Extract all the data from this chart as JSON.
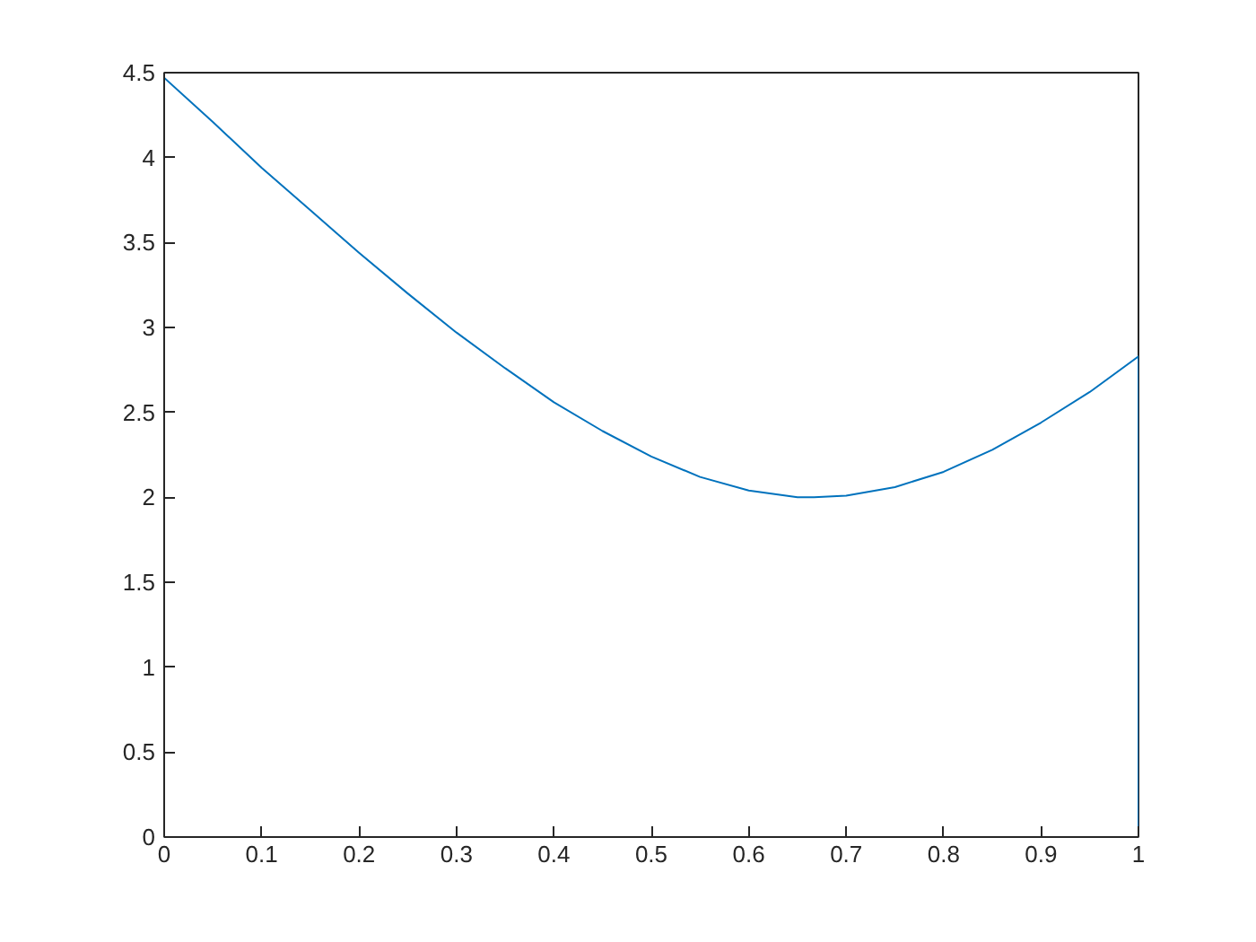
{
  "chart_data": {
    "type": "line",
    "x": [
      0,
      0.05,
      0.1,
      0.15,
      0.2,
      0.25,
      0.3,
      0.35,
      0.4,
      0.45,
      0.5,
      0.55,
      0.6,
      0.65,
      0.667,
      0.7,
      0.75,
      0.8,
      0.85,
      0.9,
      0.95,
      1,
      1
    ],
    "series": [
      {
        "color": "#0072bd",
        "values": [
          4.47,
          4.21,
          3.94,
          3.69,
          3.44,
          3.2,
          2.97,
          2.76,
          2.56,
          2.39,
          2.24,
          2.12,
          2.04,
          2.0,
          2.0,
          2.01,
          2.06,
          2.15,
          2.28,
          2.44,
          2.62,
          2.83,
          0
        ]
      }
    ],
    "xlim": [
      0,
      1
    ],
    "ylim": [
      0,
      4.5
    ],
    "xticks": [
      0,
      0.1,
      0.2,
      0.3,
      0.4,
      0.5,
      0.6,
      0.7,
      0.8,
      0.9,
      1
    ],
    "yticks": [
      0,
      0.5,
      1,
      1.5,
      2,
      2.5,
      3,
      3.5,
      4,
      4.5
    ],
    "grid": false,
    "marker": "none",
    "line_style": "solid"
  }
}
